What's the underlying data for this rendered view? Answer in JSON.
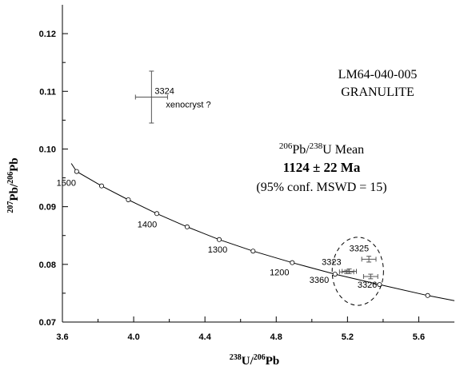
{
  "chart_data": {
    "type": "scatter",
    "xlabel_iso1": "238",
    "xlabel_el1": "U/",
    "xlabel_iso2": "206",
    "xlabel_el2": "Pb",
    "ylabel_iso1": "207",
    "ylabel_el1": "Pb/",
    "ylabel_iso2": "206",
    "ylabel_el2": "Pb",
    "xlim": [
      3.6,
      5.8
    ],
    "ylim": [
      0.07,
      0.125
    ],
    "x_ticks": [
      3.6,
      4.0,
      4.4,
      4.8,
      5.2,
      5.6
    ],
    "x_tick_labels": [
      "3.6",
      "4.0",
      "4.4",
      "4.8",
      "5.2",
      "5.6"
    ],
    "y_ticks": [
      0.07,
      0.08,
      0.09,
      0.1,
      0.11,
      0.12
    ],
    "y_tick_labels": [
      "0.07",
      "0.08",
      "0.09",
      "0.10",
      "0.11",
      "0.12"
    ],
    "grid": false,
    "sample_id": "LM64-040-005",
    "rock_type": "GRANULITE",
    "mean_iso": "206",
    "mean_el1": "Pb/",
    "mean_iso2": "238",
    "mean_el2": "U Mean",
    "age": "1124 ± 22 Ma",
    "stats": "(95% conf.  MSWD = 15)",
    "concordia": {
      "points": [
        {
          "x": 3.65,
          "y": 0.0975
        },
        {
          "x": 3.68,
          "y": 0.0961
        },
        {
          "x": 3.82,
          "y": 0.0936
        },
        {
          "x": 3.97,
          "y": 0.0912
        },
        {
          "x": 4.13,
          "y": 0.0888
        },
        {
          "x": 4.3,
          "y": 0.0865
        },
        {
          "x": 4.48,
          "y": 0.0843
        },
        {
          "x": 4.67,
          "y": 0.0823
        },
        {
          "x": 4.89,
          "y": 0.0803
        },
        {
          "x": 5.13,
          "y": 0.0783
        },
        {
          "x": 5.38,
          "y": 0.0765
        },
        {
          "x": 5.65,
          "y": 0.0746
        },
        {
          "x": 5.8,
          "y": 0.0737
        }
      ],
      "markers": [
        {
          "x": 3.68,
          "y": 0.0961
        },
        {
          "x": 3.82,
          "y": 0.0936
        },
        {
          "x": 3.97,
          "y": 0.0912
        },
        {
          "x": 4.13,
          "y": 0.0888
        },
        {
          "x": 4.3,
          "y": 0.0865
        },
        {
          "x": 4.48,
          "y": 0.0843
        },
        {
          "x": 4.67,
          "y": 0.0823
        },
        {
          "x": 4.89,
          "y": 0.0803
        },
        {
          "x": 5.13,
          "y": 0.0783
        },
        {
          "x": 5.38,
          "y": 0.0765
        },
        {
          "x": 5.65,
          "y": 0.0746
        }
      ],
      "age_labels": [
        {
          "text": "1500",
          "x": 3.68,
          "y": 0.0961
        },
        {
          "text": "1400",
          "x": 4.13,
          "y": 0.0888
        },
        {
          "text": "1300",
          "x": 4.48,
          "y": 0.0843
        },
        {
          "text": "1200",
          "x": 4.89,
          "y": 0.0803
        }
      ]
    },
    "analyses": [
      {
        "id": "3324",
        "x": 4.1,
        "y": 0.109,
        "x_err": 0.09,
        "y_err": 0.0045,
        "note": "xenocryst ?"
      },
      {
        "id": "3325",
        "x": 5.32,
        "y": 0.0809,
        "x_err": 0.04,
        "y_err": 0.0005
      },
      {
        "id": "3323",
        "x": 5.21,
        "y": 0.0788,
        "x_err": 0.04,
        "y_err": 0.0004
      },
      {
        "id": "3360",
        "x": 5.195,
        "y": 0.0787,
        "x_err": 0.04,
        "y_err": 0.0003
      },
      {
        "id": "3326",
        "x": 5.33,
        "y": 0.0779,
        "x_err": 0.04,
        "y_err": 0.0004
      }
    ],
    "ellipse": {
      "cx": 5.258,
      "cy": 0.0788,
      "rx_data": 0.144,
      "ry_data": 0.0059
    }
  }
}
